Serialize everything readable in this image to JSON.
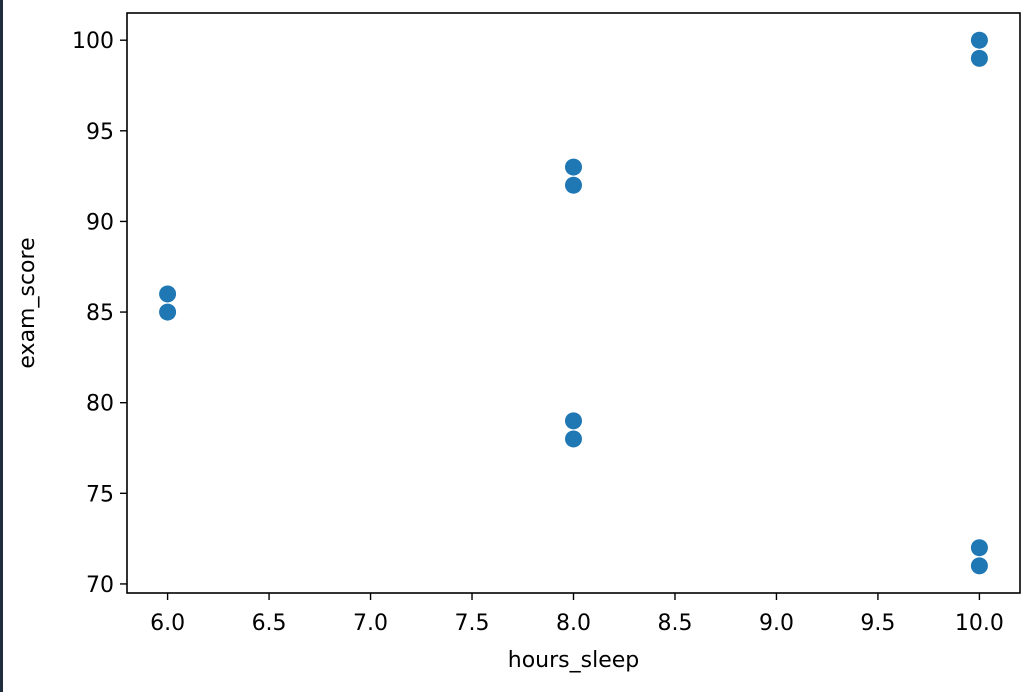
{
  "chart_data": {
    "type": "scatter",
    "title": "",
    "xlabel": "hours_sleep",
    "ylabel": "exam_score",
    "xlim": [
      5.8,
      10.2
    ],
    "ylim": [
      69.5,
      101.5
    ],
    "xticks": [
      6.0,
      6.5,
      7.0,
      7.5,
      8.0,
      8.5,
      9.0,
      9.5,
      10.0
    ],
    "xtick_labels": [
      "6.0",
      "6.5",
      "7.0",
      "7.5",
      "8.0",
      "8.5",
      "9.0",
      "9.5",
      "10.0"
    ],
    "yticks": [
      70,
      75,
      80,
      85,
      90,
      95,
      100
    ],
    "ytick_labels": [
      "70",
      "75",
      "80",
      "85",
      "90",
      "95",
      "100"
    ],
    "grid": false,
    "marker_color": "#1f77b4",
    "points": [
      {
        "x": 6,
        "y": 85
      },
      {
        "x": 6,
        "y": 86
      },
      {
        "x": 8,
        "y": 92
      },
      {
        "x": 8,
        "y": 93
      },
      {
        "x": 8,
        "y": 78
      },
      {
        "x": 8,
        "y": 79
      },
      {
        "x": 10,
        "y": 99
      },
      {
        "x": 10,
        "y": 100
      },
      {
        "x": 10,
        "y": 71
      },
      {
        "x": 10,
        "y": 72
      }
    ]
  }
}
